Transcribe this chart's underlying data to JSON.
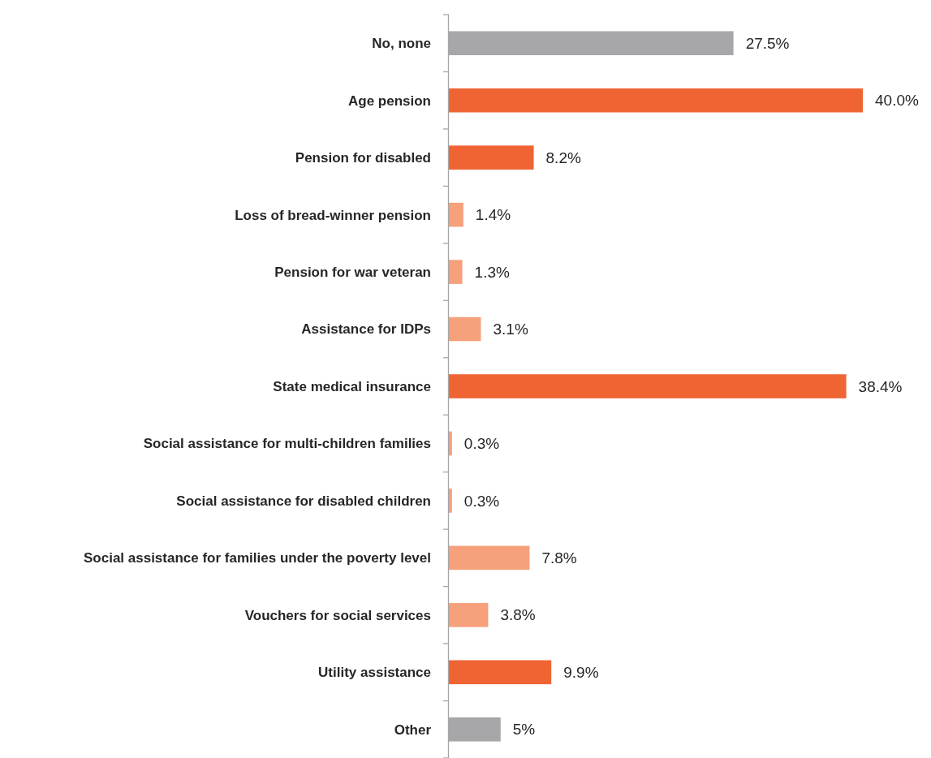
{
  "chart_data": {
    "type": "bar",
    "orientation": "horizontal",
    "categories": [
      "No, none",
      "Age pension",
      "Pension for disabled",
      "Loss of bread-winner pension",
      "Pension for war veteran",
      "Assistance for IDPs",
      "State medical insurance",
      "Social assistance for multi-children families",
      "Social assistance for disabled children",
      "Social assistance for families under the poverty level",
      "Vouchers for social services",
      "Utility assistance",
      "Other"
    ],
    "values": [
      27.5,
      40.0,
      8.2,
      1.4,
      1.3,
      3.1,
      38.4,
      0.3,
      0.3,
      7.8,
      3.8,
      9.9,
      5
    ],
    "value_labels": [
      "27.5%",
      "40.0%",
      "8.2%",
      "1.4%",
      "1.3%",
      "3.1%",
      "38.4%",
      "0.3%",
      "0.3%",
      "7.8%",
      "3.8%",
      "9.9%",
      "5%"
    ],
    "colors": [
      "#a7a7a9",
      "#f06434",
      "#f06434",
      "#f6a07c",
      "#f6a07c",
      "#f6a07c",
      "#f06434",
      "#f6a07c",
      "#f6a07c",
      "#f6a07c",
      "#f6a07c",
      "#f06434",
      "#a7a7a9"
    ],
    "data_labels": false
  }
}
